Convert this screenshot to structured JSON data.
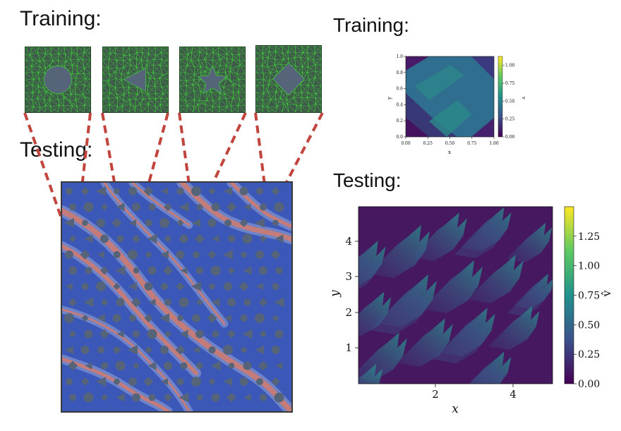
{
  "left": {
    "training_heading": "Training:",
    "testing_heading": "Testing:",
    "tiles": [
      {
        "shape": "circle"
      },
      {
        "shape": "triangle"
      },
      {
        "shape": "star"
      },
      {
        "shape": "diamond"
      }
    ],
    "colors": {
      "mesh_bg": "#3e5a48",
      "mesh_edge": "#3fe03a",
      "hole": "#56647a",
      "zoom_line": "#c2453d",
      "field_low": "#3b57b8",
      "field_high": "#e07a5f"
    }
  },
  "right": {
    "training_heading": "Training:",
    "testing_heading": "Testing:",
    "training_plot": {
      "type": "heatmap",
      "xlabel": "x",
      "ylabel": "y",
      "colorbar_label": "v",
      "xticks": [
        "0.00",
        "0.25",
        "0.50",
        "0.75",
        "1.00"
      ],
      "yticks": [
        "0.0",
        "0.2",
        "0.4",
        "0.6",
        "0.8",
        "1.0"
      ],
      "cbar_ticks": [
        "0.00",
        "0.25",
        "0.50",
        "0.75",
        "1.00"
      ]
    },
    "testing_plot": {
      "type": "heatmap",
      "xlabel": "x",
      "ylabel": "y",
      "colorbar_label": "v̂",
      "xticks": [
        "2",
        "4"
      ],
      "yticks": [
        "1",
        "2",
        "3",
        "4"
      ],
      "cbar_ticks": [
        "0.00",
        "0.25",
        "0.50",
        "0.75",
        "1.00",
        "1.25"
      ]
    }
  }
}
